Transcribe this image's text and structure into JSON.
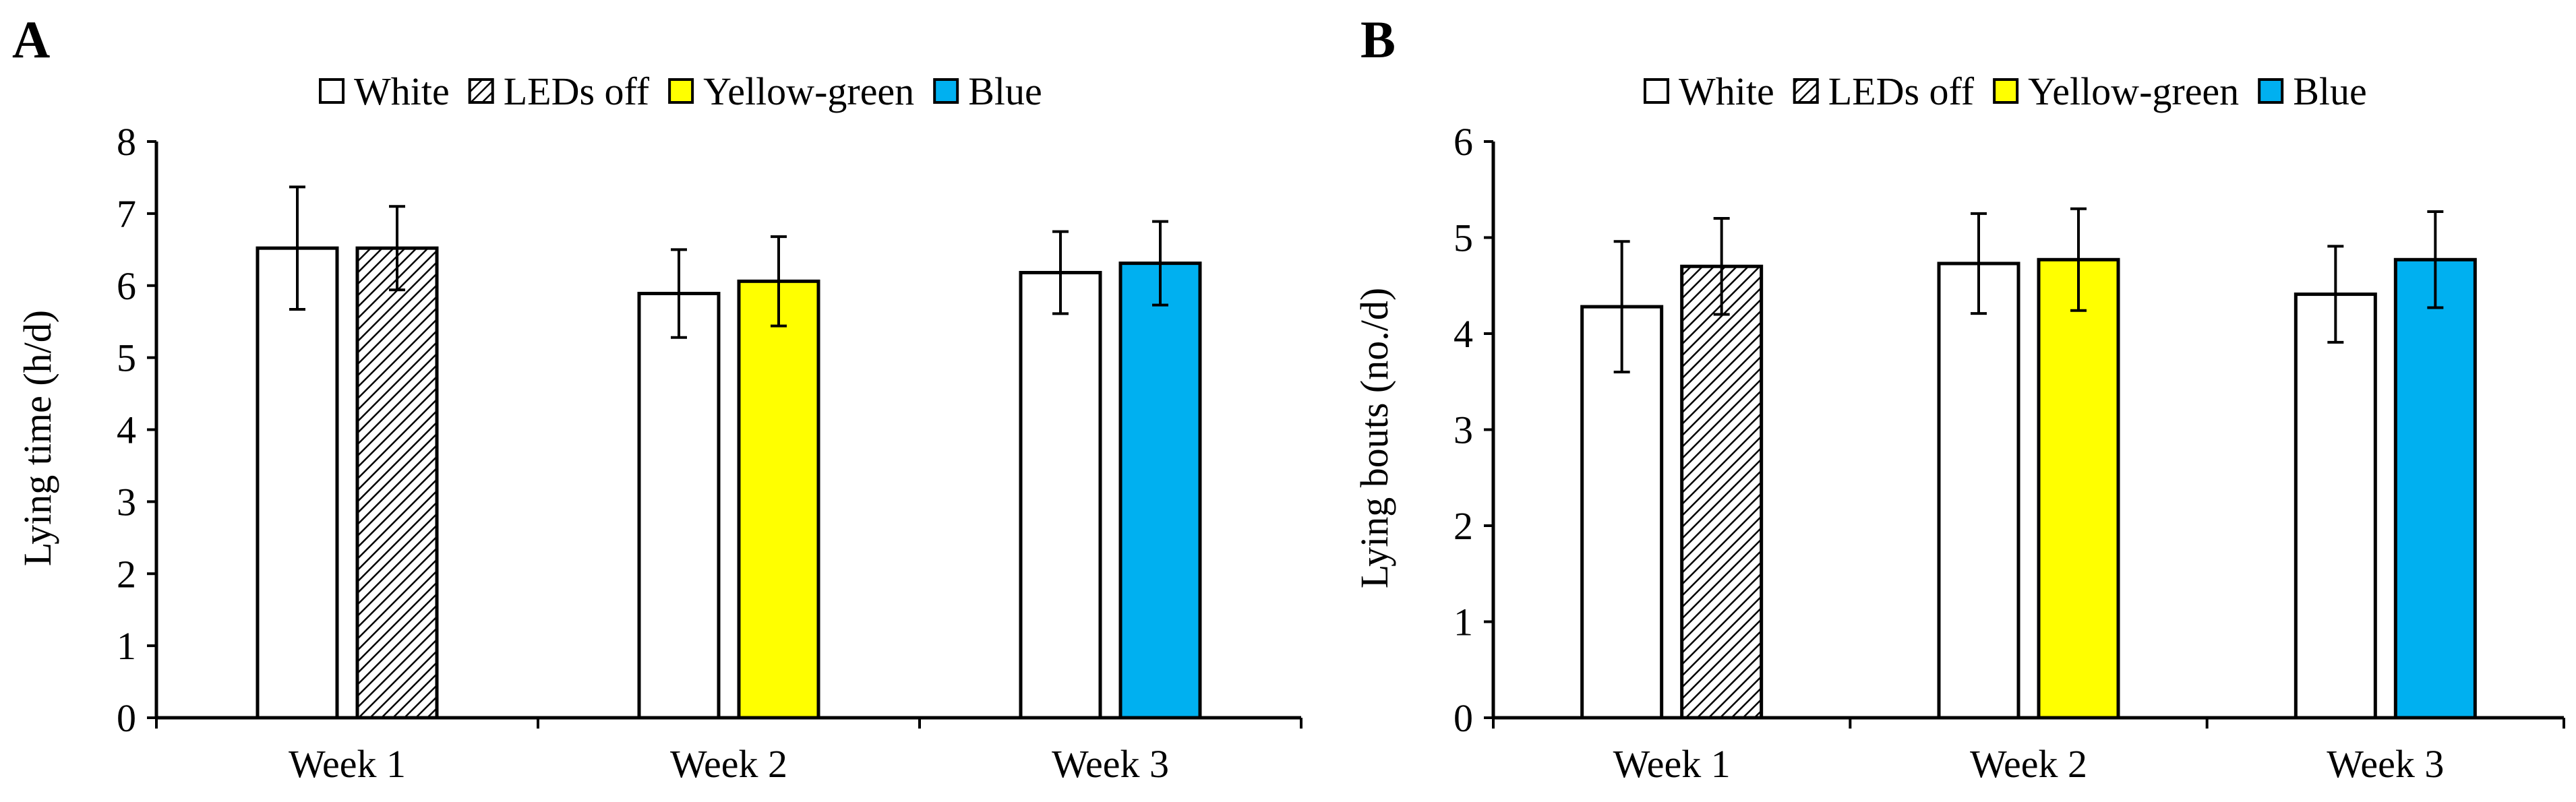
{
  "chart_data": [
    {
      "panel": "A",
      "type": "bar",
      "title": "",
      "xlabel": "",
      "ylabel": "Lying time (h/d)",
      "ylim": [
        0,
        8
      ],
      "yticks": [
        0,
        1,
        2,
        3,
        4,
        5,
        6,
        7,
        8
      ],
      "legend": [
        "White",
        "LEDs off",
        "Yellow-green",
        "Blue"
      ],
      "legend_position": "top",
      "categories": [
        "Week 1",
        "Week 2",
        "Week 3"
      ],
      "bars": [
        {
          "category": "Week 1",
          "treatment": "White",
          "value": 6.52,
          "error": 0.85
        },
        {
          "category": "Week 1",
          "treatment": "LEDs off",
          "value": 6.52,
          "error": 0.58
        },
        {
          "category": "Week 2",
          "treatment": "White",
          "value": 5.89,
          "error": 0.61
        },
        {
          "category": "Week 2",
          "treatment": "Yellow-green",
          "value": 6.06,
          "error": 0.62
        },
        {
          "category": "Week 3",
          "treatment": "White",
          "value": 6.18,
          "error": 0.57
        },
        {
          "category": "Week 3",
          "treatment": "Blue",
          "value": 6.31,
          "error": 0.58
        }
      ]
    },
    {
      "panel": "B",
      "type": "bar",
      "title": "",
      "xlabel": "",
      "ylabel": "Lying bouts (no./d)",
      "ylim": [
        0,
        6
      ],
      "yticks": [
        0,
        1,
        2,
        3,
        4,
        5,
        6
      ],
      "legend": [
        "White",
        "LEDs off",
        "Yellow-green",
        "Blue"
      ],
      "legend_position": "top",
      "categories": [
        "Week 1",
        "Week 2",
        "Week 3"
      ],
      "bars": [
        {
          "category": "Week 1",
          "treatment": "White",
          "value": 4.28,
          "error": 0.68
        },
        {
          "category": "Week 1",
          "treatment": "LEDs off",
          "value": 4.7,
          "error": 0.5
        },
        {
          "category": "Week 2",
          "treatment": "White",
          "value": 4.73,
          "error": 0.52
        },
        {
          "category": "Week 2",
          "treatment": "Yellow-green",
          "value": 4.77,
          "error": 0.53
        },
        {
          "category": "Week 3",
          "treatment": "White",
          "value": 4.41,
          "error": 0.5
        },
        {
          "category": "Week 3",
          "treatment": "Blue",
          "value": 4.77,
          "error": 0.5
        }
      ]
    }
  ],
  "colors": {
    "White": "#ffffff",
    "LEDs off": "hatch",
    "Yellow-green": "#ffff00",
    "Blue": "#00b0f0",
    "axis": "#000000"
  }
}
